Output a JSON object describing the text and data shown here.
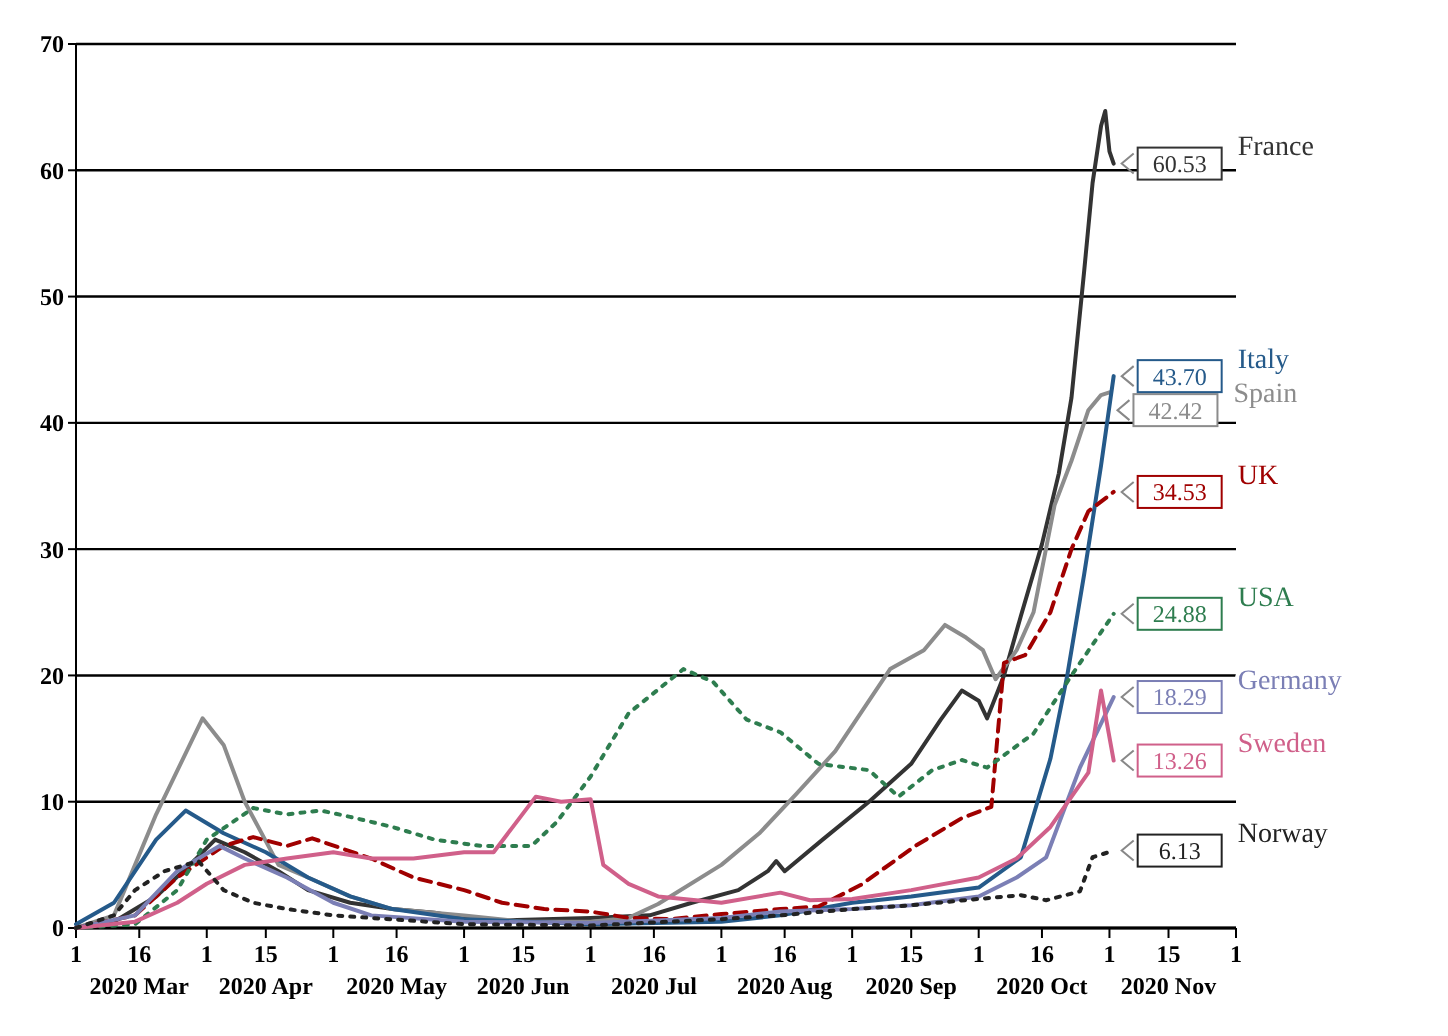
{
  "chart_data": {
    "type": "line",
    "xlim": [
      "2020-03-01",
      "2020-12-01"
    ],
    "ylim": [
      0,
      70
    ],
    "yticks": [
      0,
      10,
      20,
      30,
      40,
      50,
      60,
      70
    ],
    "grid": "y",
    "legend": "right",
    "xticks": [
      {
        "value": "2020-03-01",
        "label": "1"
      },
      {
        "value": "2020-03-16",
        "label": "16\n2020 Mar"
      },
      {
        "value": "2020-04-01",
        "label": "1"
      },
      {
        "value": "2020-04-15",
        "label": "15\n2020 Apr"
      },
      {
        "value": "2020-05-01",
        "label": "1"
      },
      {
        "value": "2020-05-16",
        "label": "16\n2020 May"
      },
      {
        "value": "2020-06-01",
        "label": "1"
      },
      {
        "value": "2020-06-15",
        "label": "15\n2020 Jun"
      },
      {
        "value": "2020-07-01",
        "label": "1"
      },
      {
        "value": "2020-07-16",
        "label": "16\n2020 Jul"
      },
      {
        "value": "2020-08-01",
        "label": "1"
      },
      {
        "value": "2020-08-16",
        "label": "16\n2020 Aug"
      },
      {
        "value": "2020-09-01",
        "label": "1"
      },
      {
        "value": "2020-09-15",
        "label": "15\n2020 Sep"
      },
      {
        "value": "2020-10-01",
        "label": "1"
      },
      {
        "value": "2020-10-16",
        "label": "16\n2020 Oct"
      },
      {
        "value": "2020-11-01",
        "label": "1"
      },
      {
        "value": "2020-11-15",
        "label": "15\n2020 Nov"
      },
      {
        "value": "2020-12-01",
        "label": "1"
      }
    ],
    "series": [
      {
        "name": "France",
        "color": "#333333",
        "line_style": "solid",
        "x": [
          "2020-03-01",
          "2020-03-10",
          "2020-03-20",
          "2020-03-28",
          "2020-04-03",
          "2020-04-10",
          "2020-04-18",
          "2020-04-25",
          "2020-05-05",
          "2020-05-15",
          "2020-05-25",
          "2020-06-01",
          "2020-06-10",
          "2020-06-20",
          "2020-07-01",
          "2020-07-15",
          "2020-07-25",
          "2020-08-05",
          "2020-08-12",
          "2020-08-14",
          "2020-08-16",
          "2020-08-25",
          "2020-09-05",
          "2020-09-15",
          "2020-09-22",
          "2020-09-27",
          "2020-10-01",
          "2020-10-03",
          "2020-10-07",
          "2020-10-11",
          "2020-10-16",
          "2020-10-20",
          "2020-10-23",
          "2020-10-26",
          "2020-10-28",
          "2020-10-30",
          "2020-10-31",
          "2020-11-01",
          "2020-11-02"
        ],
        "values": [
          0,
          0.5,
          2.5,
          5,
          7,
          6,
          4.5,
          3,
          2,
          1.5,
          1.2,
          0.8,
          0.6,
          0.7,
          0.8,
          1,
          2,
          3,
          4.5,
          5.3,
          4.5,
          7,
          10,
          13,
          16.5,
          18.8,
          18,
          16.6,
          20,
          24.7,
          30.4,
          36,
          42,
          52,
          59,
          63.5,
          64.7,
          61.5,
          60.53
        ],
        "value_labels": [
          null,
          null,
          null,
          null,
          null,
          null,
          null,
          null,
          null,
          null,
          null,
          null,
          null,
          null,
          null,
          null,
          null,
          null,
          null,
          null,
          null,
          null,
          null,
          null,
          null,
          null,
          null,
          null,
          null,
          null,
          null,
          null,
          null,
          null,
          null,
          null,
          null,
          null,
          "60.53"
        ]
      },
      {
        "name": "Spain",
        "color": "#8c8c8c",
        "line_style": "solid",
        "x": [
          "2020-03-01",
          "2020-03-10",
          "2020-03-20",
          "2020-03-31",
          "2020-04-05",
          "2020-04-10",
          "2020-04-18",
          "2020-04-25",
          "2020-05-05",
          "2020-05-15",
          "2020-06-01",
          "2020-06-15",
          "2020-07-01",
          "2020-07-10",
          "2020-07-17",
          "2020-08-01",
          "2020-08-10",
          "2020-08-19",
          "2020-08-28",
          "2020-09-10",
          "2020-09-18",
          "2020-09-23",
          "2020-09-28",
          "2020-10-02",
          "2020-10-05",
          "2020-10-10",
          "2020-10-14",
          "2020-10-19",
          "2020-10-23",
          "2020-10-27",
          "2020-10-30",
          "2020-11-01"
        ],
        "values": [
          0,
          1,
          9,
          16.6,
          14.5,
          10,
          5,
          4,
          2.5,
          1.5,
          1,
          0.5,
          0.5,
          0.8,
          1.9,
          5,
          7.5,
          10.7,
          14,
          20.5,
          22,
          24,
          23,
          22,
          19.7,
          22,
          25,
          33.5,
          37,
          41,
          42.2,
          42.42
        ],
        "value_labels": [
          null,
          null,
          null,
          null,
          null,
          null,
          null,
          null,
          null,
          null,
          null,
          null,
          null,
          null,
          null,
          null,
          null,
          null,
          null,
          null,
          null,
          null,
          null,
          null,
          null,
          null,
          null,
          null,
          null,
          null,
          null,
          "42.42"
        ]
      },
      {
        "name": "Italy",
        "color": "#255a8a",
        "line_style": "solid",
        "x": [
          "2020-03-01",
          "2020-03-10",
          "2020-03-20",
          "2020-03-27",
          "2020-04-05",
          "2020-04-15",
          "2020-04-25",
          "2020-05-05",
          "2020-05-15",
          "2020-06-01",
          "2020-07-01",
          "2020-08-01",
          "2020-08-15",
          "2020-09-01",
          "2020-09-15",
          "2020-10-01",
          "2020-10-11",
          "2020-10-18",
          "2020-10-22",
          "2020-10-26",
          "2020-10-30",
          "2020-11-02"
        ],
        "values": [
          0.3,
          2,
          7,
          9.3,
          7.5,
          6,
          4,
          2.5,
          1.5,
          0.7,
          0.3,
          0.5,
          1,
          2,
          2.5,
          3.2,
          5.6,
          13.4,
          20,
          28,
          36.6,
          43.7
        ],
        "value_labels": [
          null,
          null,
          null,
          null,
          null,
          null,
          null,
          null,
          null,
          null,
          null,
          null,
          null,
          null,
          null,
          null,
          null,
          null,
          null,
          null,
          null,
          "43.70"
        ]
      },
      {
        "name": "UK",
        "color": "#a00000",
        "line_style": "dashed",
        "x": [
          "2020-03-01",
          "2020-03-15",
          "2020-03-25",
          "2020-04-05",
          "2020-04-12",
          "2020-04-20",
          "2020-04-26",
          "2020-05-10",
          "2020-05-20",
          "2020-06-01",
          "2020-06-10",
          "2020-06-20",
          "2020-07-01",
          "2020-07-10",
          "2020-07-20",
          "2020-08-01",
          "2020-08-15",
          "2020-08-24",
          "2020-09-03",
          "2020-09-16",
          "2020-09-27",
          "2020-10-04",
          "2020-10-07",
          "2020-10-12",
          "2020-10-18",
          "2020-10-23",
          "2020-10-27",
          "2020-11-02"
        ],
        "values": [
          0,
          1,
          4,
          6.5,
          7.2,
          6.5,
          7.1,
          5.5,
          4,
          3,
          2,
          1.5,
          1.3,
          0.8,
          0.7,
          1.1,
          1.5,
          1.7,
          3.4,
          6.5,
          8.7,
          9.6,
          21,
          21.6,
          25,
          30,
          33,
          34.53
        ],
        "value_labels": [
          null,
          null,
          null,
          null,
          null,
          null,
          null,
          null,
          null,
          null,
          null,
          null,
          null,
          null,
          null,
          null,
          null,
          null,
          null,
          null,
          null,
          null,
          null,
          null,
          null,
          null,
          null,
          "34.53"
        ]
      },
      {
        "name": "USA",
        "color": "#2e7d4f",
        "line_style": "dotted",
        "x": [
          "2020-03-01",
          "2020-03-15",
          "2020-03-25",
          "2020-04-01",
          "2020-04-12",
          "2020-04-20",
          "2020-04-28",
          "2020-05-05",
          "2020-05-15",
          "2020-05-25",
          "2020-06-05",
          "2020-06-17",
          "2020-06-23",
          "2020-07-01",
          "2020-07-10",
          "2020-07-23",
          "2020-07-30",
          "2020-08-07",
          "2020-08-15",
          "2020-08-24",
          "2020-09-05",
          "2020-09-12",
          "2020-09-20",
          "2020-09-27",
          "2020-10-03",
          "2020-10-14",
          "2020-10-23",
          "2020-11-02"
        ],
        "values": [
          0,
          0.3,
          3,
          7,
          9.5,
          9,
          9.3,
          8.8,
          8,
          7,
          6.5,
          6.5,
          8.4,
          12,
          17,
          20.5,
          19.5,
          16.5,
          15.5,
          13,
          12.5,
          10.4,
          12.5,
          13.3,
          12.7,
          15.4,
          20,
          24.88
        ],
        "value_labels": [
          null,
          null,
          null,
          null,
          null,
          null,
          null,
          null,
          null,
          null,
          null,
          null,
          null,
          null,
          null,
          null,
          null,
          null,
          null,
          null,
          null,
          null,
          null,
          null,
          null,
          null,
          null,
          "24.88"
        ]
      },
      {
        "name": "Germany",
        "color": "#7b7fb5",
        "line_style": "solid",
        "x": [
          "2020-03-01",
          "2020-03-15",
          "2020-03-25",
          "2020-04-04",
          "2020-04-10",
          "2020-04-20",
          "2020-05-01",
          "2020-05-10",
          "2020-06-01",
          "2020-07-01",
          "2020-08-01",
          "2020-08-15",
          "2020-09-01",
          "2020-09-15",
          "2020-10-01",
          "2020-10-10",
          "2020-10-17",
          "2020-10-25",
          "2020-11-02"
        ],
        "values": [
          0,
          1,
          4.5,
          6.5,
          5.5,
          4,
          2,
          1,
          0.5,
          0.4,
          0.8,
          1.3,
          1.5,
          1.8,
          2.5,
          4,
          5.6,
          12.7,
          18.29
        ],
        "value_labels": [
          null,
          null,
          null,
          null,
          null,
          null,
          null,
          null,
          null,
          null,
          null,
          null,
          null,
          null,
          null,
          null,
          null,
          null,
          "18.29"
        ]
      },
      {
        "name": "Sweden",
        "color": "#d0608a",
        "line_style": "solid",
        "x": [
          "2020-03-01",
          "2020-03-15",
          "2020-03-25",
          "2020-04-01",
          "2020-04-10",
          "2020-04-20",
          "2020-05-01",
          "2020-05-10",
          "2020-05-20",
          "2020-06-01",
          "2020-06-08",
          "2020-06-18",
          "2020-06-24",
          "2020-07-01",
          "2020-07-04",
          "2020-07-10",
          "2020-07-17",
          "2020-08-01",
          "2020-08-15",
          "2020-08-22",
          "2020-09-01",
          "2020-09-15",
          "2020-10-01",
          "2020-10-10",
          "2020-10-18",
          "2020-10-27",
          "2020-10-30",
          "2020-11-02"
        ],
        "values": [
          0,
          0.5,
          2,
          3.5,
          5,
          5.5,
          6,
          5.5,
          5.5,
          6,
          6,
          10.4,
          10,
          10.2,
          5,
          3.5,
          2.5,
          2,
          2.8,
          2.2,
          2.3,
          3,
          4,
          5.5,
          8,
          12.3,
          18.8,
          13.26
        ],
        "value_labels": [
          null,
          null,
          null,
          null,
          null,
          null,
          null,
          null,
          null,
          null,
          null,
          null,
          null,
          null,
          null,
          null,
          null,
          null,
          null,
          null,
          null,
          null,
          null,
          null,
          null,
          null,
          null,
          "13.26"
        ]
      },
      {
        "name": "Norway",
        "color": "#222222",
        "line_style": "dotted",
        "x": [
          "2020-03-01",
          "2020-03-10",
          "2020-03-15",
          "2020-03-22",
          "2020-03-30",
          "2020-04-05",
          "2020-04-12",
          "2020-04-20",
          "2020-05-01",
          "2020-06-01",
          "2020-07-01",
          "2020-08-01",
          "2020-08-15",
          "2020-09-01",
          "2020-09-15",
          "2020-10-01",
          "2020-10-11",
          "2020-10-17",
          "2020-10-25",
          "2020-10-28",
          "2020-11-02"
        ],
        "values": [
          0,
          1,
          3,
          4.5,
          5.3,
          3,
          2,
          1.5,
          1,
          0.3,
          0.2,
          0.7,
          1,
          1.5,
          1.8,
          2.3,
          2.6,
          2.2,
          2.9,
          5.6,
          6.13
        ],
        "value_labels": [
          null,
          null,
          null,
          null,
          null,
          null,
          null,
          null,
          null,
          null,
          null,
          null,
          null,
          null,
          null,
          null,
          null,
          null,
          null,
          null,
          "6.13"
        ]
      }
    ]
  }
}
